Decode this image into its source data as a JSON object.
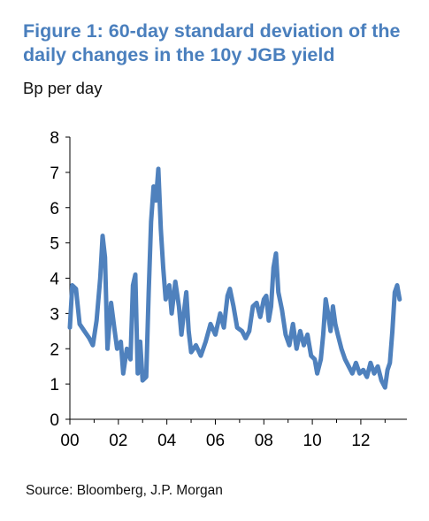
{
  "title": "Figure 1: 60-day standard deviation of the daily changes in the 10y JGB yield",
  "subtitle": "Bp per day",
  "source": "Source: Bloomberg, J.P. Morgan",
  "colors": {
    "title": "#4a7fbd",
    "line": "#4f81bd",
    "axis": "#000000"
  },
  "chart_data": {
    "type": "line",
    "title": "Figure 1: 60-day standard deviation of the daily changes in the 10y JGB yield",
    "ylabel": "Bp per day",
    "xlabel": "",
    "x_ticks": [
      "00",
      "02",
      "04",
      "06",
      "08",
      "10",
      "12"
    ],
    "y_ticks": [
      0,
      1,
      2,
      3,
      4,
      5,
      6,
      7,
      8
    ],
    "xlim": [
      2000,
      2013.9
    ],
    "ylim": [
      0,
      8
    ],
    "grid": false,
    "legend": "none",
    "series": [
      {
        "values": [
          [
            2000.0,
            2.6
          ],
          [
            2000.1,
            3.8
          ],
          [
            2000.25,
            3.7
          ],
          [
            2000.4,
            2.7
          ],
          [
            2000.6,
            2.5
          ],
          [
            2000.8,
            2.3
          ],
          [
            2000.95,
            2.1
          ],
          [
            2001.1,
            2.8
          ],
          [
            2001.25,
            4.0
          ],
          [
            2001.35,
            5.2
          ],
          [
            2001.45,
            4.6
          ],
          [
            2001.55,
            2.0
          ],
          [
            2001.7,
            3.3
          ],
          [
            2001.85,
            2.5
          ],
          [
            2001.95,
            2.0
          ],
          [
            2002.1,
            2.2
          ],
          [
            2002.2,
            1.3
          ],
          [
            2002.35,
            2.0
          ],
          [
            2002.5,
            1.7
          ],
          [
            2002.6,
            3.8
          ],
          [
            2002.7,
            4.1
          ],
          [
            2002.8,
            1.3
          ],
          [
            2002.9,
            2.2
          ],
          [
            2003.0,
            1.1
          ],
          [
            2003.15,
            1.2
          ],
          [
            2003.25,
            3.6
          ],
          [
            2003.35,
            5.6
          ],
          [
            2003.45,
            6.6
          ],
          [
            2003.55,
            6.2
          ],
          [
            2003.65,
            7.1
          ],
          [
            2003.75,
            5.4
          ],
          [
            2003.85,
            4.3
          ],
          [
            2003.95,
            3.4
          ],
          [
            2004.1,
            3.8
          ],
          [
            2004.2,
            3.0
          ],
          [
            2004.35,
            3.9
          ],
          [
            2004.5,
            3.2
          ],
          [
            2004.6,
            2.4
          ],
          [
            2004.7,
            3.0
          ],
          [
            2004.8,
            3.6
          ],
          [
            2004.9,
            2.5
          ],
          [
            2005.0,
            1.9
          ],
          [
            2005.2,
            2.1
          ],
          [
            2005.4,
            1.8
          ],
          [
            2005.6,
            2.2
          ],
          [
            2005.8,
            2.7
          ],
          [
            2006.0,
            2.4
          ],
          [
            2006.2,
            3.0
          ],
          [
            2006.35,
            2.6
          ],
          [
            2006.5,
            3.5
          ],
          [
            2006.6,
            3.7
          ],
          [
            2006.75,
            3.2
          ],
          [
            2006.9,
            2.6
          ],
          [
            2007.1,
            2.5
          ],
          [
            2007.25,
            2.3
          ],
          [
            2007.4,
            2.5
          ],
          [
            2007.55,
            3.2
          ],
          [
            2007.7,
            3.3
          ],
          [
            2007.85,
            2.9
          ],
          [
            2008.0,
            3.4
          ],
          [
            2008.1,
            3.5
          ],
          [
            2008.2,
            2.8
          ],
          [
            2008.3,
            3.2
          ],
          [
            2008.4,
            4.3
          ],
          [
            2008.5,
            4.7
          ],
          [
            2008.6,
            3.6
          ],
          [
            2008.75,
            3.1
          ],
          [
            2008.9,
            2.4
          ],
          [
            2009.05,
            2.1
          ],
          [
            2009.2,
            2.7
          ],
          [
            2009.35,
            2.0
          ],
          [
            2009.5,
            2.5
          ],
          [
            2009.65,
            2.1
          ],
          [
            2009.8,
            2.4
          ],
          [
            2009.95,
            1.8
          ],
          [
            2010.1,
            1.7
          ],
          [
            2010.2,
            1.3
          ],
          [
            2010.35,
            1.7
          ],
          [
            2010.45,
            2.4
          ],
          [
            2010.55,
            3.4
          ],
          [
            2010.65,
            3.0
          ],
          [
            2010.75,
            2.5
          ],
          [
            2010.85,
            3.2
          ],
          [
            2010.95,
            2.7
          ],
          [
            2011.05,
            2.4
          ],
          [
            2011.2,
            2.0
          ],
          [
            2011.35,
            1.7
          ],
          [
            2011.5,
            1.5
          ],
          [
            2011.65,
            1.3
          ],
          [
            2011.8,
            1.6
          ],
          [
            2011.95,
            1.3
          ],
          [
            2012.1,
            1.4
          ],
          [
            2012.25,
            1.2
          ],
          [
            2012.4,
            1.6
          ],
          [
            2012.55,
            1.3
          ],
          [
            2012.7,
            1.5
          ],
          [
            2012.85,
            1.1
          ],
          [
            2013.0,
            0.9
          ],
          [
            2013.1,
            1.4
          ],
          [
            2013.2,
            1.6
          ],
          [
            2013.3,
            2.5
          ],
          [
            2013.4,
            3.6
          ],
          [
            2013.5,
            3.8
          ],
          [
            2013.6,
            3.4
          ]
        ]
      }
    ]
  }
}
